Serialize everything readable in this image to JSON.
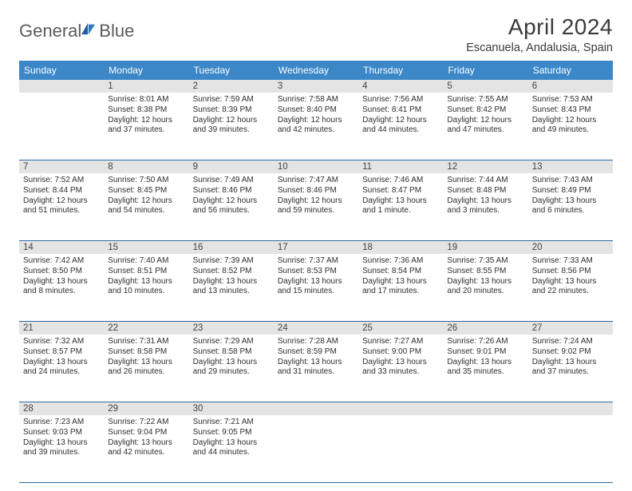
{
  "brand": {
    "part1": "General",
    "part2": "Blue"
  },
  "title": "April 2024",
  "location": "Escanuela, Andalusia, Spain",
  "colors": {
    "header_bg": "#3b87c8",
    "header_text": "#ffffff",
    "divider": "#2f6aa3",
    "daynum_bg": "#e4e4e4",
    "body_text": "#2e2e2e",
    "title_text": "#3a3a3a",
    "logo_gray": "#5b5b5b",
    "logo_blue": "#2a7ac0"
  },
  "weekdays": [
    "Sunday",
    "Monday",
    "Tuesday",
    "Wednesday",
    "Thursday",
    "Friday",
    "Saturday"
  ],
  "weeks": [
    {
      "nums": [
        "",
        "1",
        "2",
        "3",
        "4",
        "5",
        "6"
      ],
      "cells": [
        null,
        {
          "sunrise": "8:01 AM",
          "sunset": "8:38 PM",
          "day_h": 12,
          "day_m": 37
        },
        {
          "sunrise": "7:59 AM",
          "sunset": "8:39 PM",
          "day_h": 12,
          "day_m": 39
        },
        {
          "sunrise": "7:58 AM",
          "sunset": "8:40 PM",
          "day_h": 12,
          "day_m": 42
        },
        {
          "sunrise": "7:56 AM",
          "sunset": "8:41 PM",
          "day_h": 12,
          "day_m": 44
        },
        {
          "sunrise": "7:55 AM",
          "sunset": "8:42 PM",
          "day_h": 12,
          "day_m": 47
        },
        {
          "sunrise": "7:53 AM",
          "sunset": "8:43 PM",
          "day_h": 12,
          "day_m": 49
        }
      ]
    },
    {
      "nums": [
        "7",
        "8",
        "9",
        "10",
        "11",
        "12",
        "13"
      ],
      "cells": [
        {
          "sunrise": "7:52 AM",
          "sunset": "8:44 PM",
          "day_h": 12,
          "day_m": 51
        },
        {
          "sunrise": "7:50 AM",
          "sunset": "8:45 PM",
          "day_h": 12,
          "day_m": 54
        },
        {
          "sunrise": "7:49 AM",
          "sunset": "8:46 PM",
          "day_h": 12,
          "day_m": 56
        },
        {
          "sunrise": "7:47 AM",
          "sunset": "8:46 PM",
          "day_h": 12,
          "day_m": 59
        },
        {
          "sunrise": "7:46 AM",
          "sunset": "8:47 PM",
          "day_h": 13,
          "day_m": 1
        },
        {
          "sunrise": "7:44 AM",
          "sunset": "8:48 PM",
          "day_h": 13,
          "day_m": 3
        },
        {
          "sunrise": "7:43 AM",
          "sunset": "8:49 PM",
          "day_h": 13,
          "day_m": 6
        }
      ]
    },
    {
      "nums": [
        "14",
        "15",
        "16",
        "17",
        "18",
        "19",
        "20"
      ],
      "cells": [
        {
          "sunrise": "7:42 AM",
          "sunset": "8:50 PM",
          "day_h": 13,
          "day_m": 8
        },
        {
          "sunrise": "7:40 AM",
          "sunset": "8:51 PM",
          "day_h": 13,
          "day_m": 10
        },
        {
          "sunrise": "7:39 AM",
          "sunset": "8:52 PM",
          "day_h": 13,
          "day_m": 13
        },
        {
          "sunrise": "7:37 AM",
          "sunset": "8:53 PM",
          "day_h": 13,
          "day_m": 15
        },
        {
          "sunrise": "7:36 AM",
          "sunset": "8:54 PM",
          "day_h": 13,
          "day_m": 17
        },
        {
          "sunrise": "7:35 AM",
          "sunset": "8:55 PM",
          "day_h": 13,
          "day_m": 20
        },
        {
          "sunrise": "7:33 AM",
          "sunset": "8:56 PM",
          "day_h": 13,
          "day_m": 22
        }
      ]
    },
    {
      "nums": [
        "21",
        "22",
        "23",
        "24",
        "25",
        "26",
        "27"
      ],
      "cells": [
        {
          "sunrise": "7:32 AM",
          "sunset": "8:57 PM",
          "day_h": 13,
          "day_m": 24
        },
        {
          "sunrise": "7:31 AM",
          "sunset": "8:58 PM",
          "day_h": 13,
          "day_m": 26
        },
        {
          "sunrise": "7:29 AM",
          "sunset": "8:58 PM",
          "day_h": 13,
          "day_m": 29
        },
        {
          "sunrise": "7:28 AM",
          "sunset": "8:59 PM",
          "day_h": 13,
          "day_m": 31
        },
        {
          "sunrise": "7:27 AM",
          "sunset": "9:00 PM",
          "day_h": 13,
          "day_m": 33
        },
        {
          "sunrise": "7:26 AM",
          "sunset": "9:01 PM",
          "day_h": 13,
          "day_m": 35
        },
        {
          "sunrise": "7:24 AM",
          "sunset": "9:02 PM",
          "day_h": 13,
          "day_m": 37
        }
      ]
    },
    {
      "nums": [
        "28",
        "29",
        "30",
        "",
        "",
        "",
        ""
      ],
      "cells": [
        {
          "sunrise": "7:23 AM",
          "sunset": "9:03 PM",
          "day_h": 13,
          "day_m": 39
        },
        {
          "sunrise": "7:22 AM",
          "sunset": "9:04 PM",
          "day_h": 13,
          "day_m": 42
        },
        {
          "sunrise": "7:21 AM",
          "sunset": "9:05 PM",
          "day_h": 13,
          "day_m": 44
        },
        null,
        null,
        null,
        null
      ]
    }
  ],
  "labels": {
    "sunrise_prefix": "Sunrise: ",
    "sunset_prefix": "Sunset: ",
    "daylight_prefix": "Daylight: ",
    "hours_word": " hours",
    "and_word": "and ",
    "minutes_word": " minutes.",
    "minute_word_singular": " minute."
  }
}
